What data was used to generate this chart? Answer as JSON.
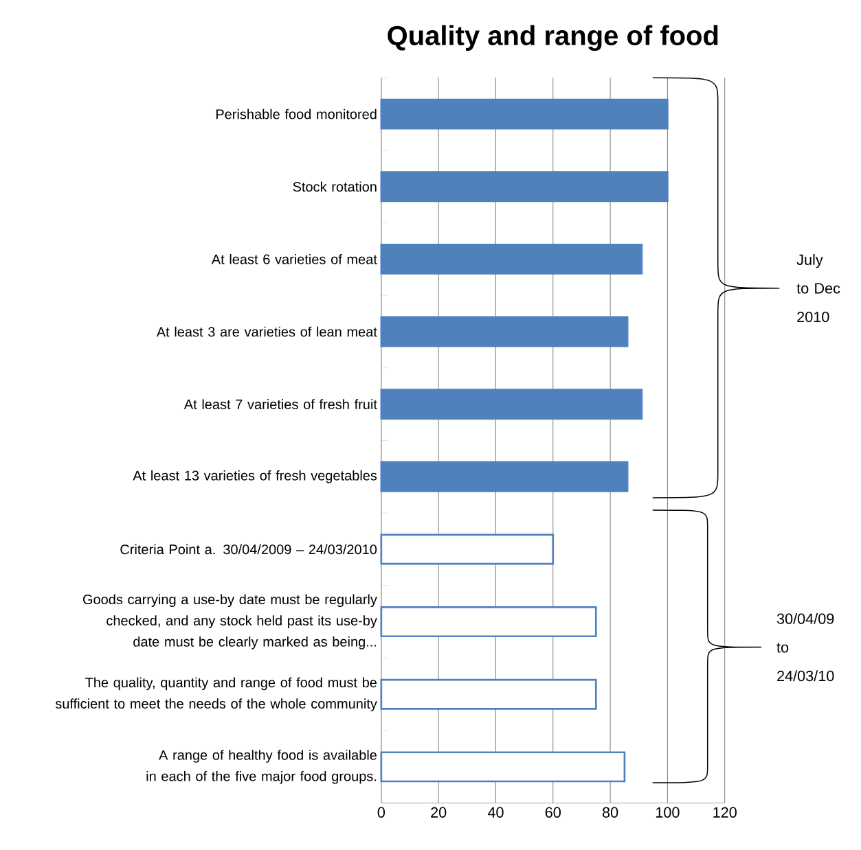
{
  "chart_data": {
    "type": "bar",
    "orientation": "horizontal",
    "title": "Quality and range of food",
    "categories": [
      "Perishable food monitored",
      "Stock rotation",
      "At least 6 varieties of meat",
      "At least 3 are varieties of lean meat",
      "At least 7 varieties of fresh fruit",
      "At least 13 varieties of fresh vegetables",
      "Criteria Point a. 30/04/2009 – 24/03/2010",
      "Goods carrying a use-by date must be regularly checked, and any stock held past its use-by date must be clearly marked as being...",
      "The quality, quantity and range of food must be sufficient to meet the needs of the whole community",
      "A range of healthy food is available in each of the five major food groups."
    ],
    "values": [
      100,
      100,
      91,
      86,
      91,
      86,
      60,
      75,
      75,
      85
    ],
    "colors": [
      "#4f81bd",
      "#4f81bd",
      "#4f81bd",
      "#4f81bd",
      "#4f81bd",
      "#4f81bd",
      "#ffffff",
      "#ffffff",
      "#ffffff",
      "#ffffff"
    ],
    "xlim": [
      0,
      120
    ],
    "xticks": [
      0,
      20,
      40,
      60,
      80,
      100,
      120
    ],
    "grid": "x",
    "annotations": [
      "July to Dec 2010",
      "30/04/09 to 24/03/10"
    ]
  }
}
